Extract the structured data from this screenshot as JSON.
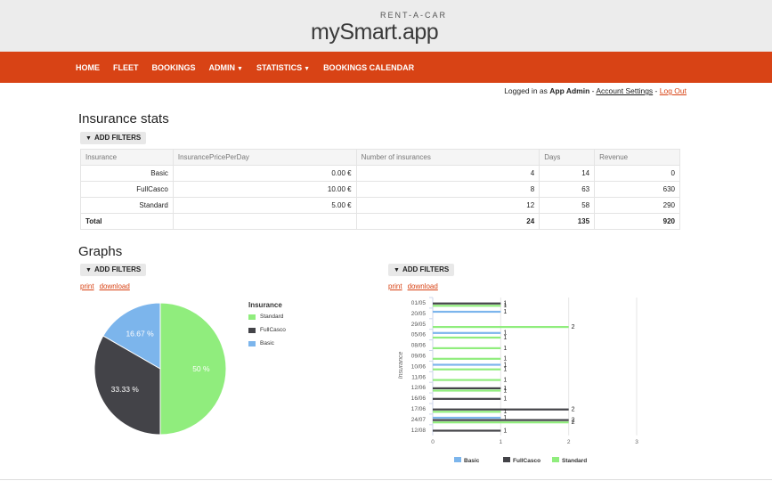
{
  "header": {
    "logo_small": "RENT-A-CAR",
    "logo_main": "mySmart.app"
  },
  "nav": {
    "items": [
      {
        "label": "HOME",
        "caret": false
      },
      {
        "label": "FLEET",
        "caret": false
      },
      {
        "label": "BOOKINGS",
        "caret": false
      },
      {
        "label": "ADMIN",
        "caret": true
      },
      {
        "label": "STATISTICS",
        "caret": true
      },
      {
        "label": "BOOKINGS CALENDAR",
        "caret": false
      }
    ]
  },
  "login": {
    "prefix": "Logged in as",
    "user": "App Admin",
    "sep": " - ",
    "account": "Account Settings",
    "logout": "Log Out"
  },
  "stats": {
    "title": "Insurance stats",
    "filter_label": "ADD FILTERS",
    "columns": [
      "Insurance",
      "InsurancePricePerDay",
      "Number of insurances",
      "Days",
      "Revenue"
    ],
    "rows": [
      [
        "Basic",
        "0.00 €",
        "4",
        "14",
        "0"
      ],
      [
        "FullCasco",
        "10.00 €",
        "8",
        "63",
        "630"
      ],
      [
        "Standard",
        "5.00 €",
        "12",
        "58",
        "290"
      ]
    ],
    "total": [
      "Total",
      "",
      "24",
      "135",
      "920"
    ]
  },
  "graphs": {
    "title": "Graphs",
    "filter_label": "ADD FILTERS",
    "print": "print",
    "download": "download"
  },
  "colors": {
    "Basic": "#7cb5ec",
    "FullCasco": "#434348",
    "Standard": "#90ed7d",
    "accent": "#d84315"
  },
  "chart_data": [
    {
      "type": "pie",
      "legend_title": "Insurance",
      "legend_placement": "right",
      "slices": [
        {
          "name": "Standard",
          "value": 50,
          "label": "50 %"
        },
        {
          "name": "FullCasco",
          "value": 33.33,
          "label": "33.33 %"
        },
        {
          "name": "Basic",
          "value": 16.67,
          "label": "16.67 %"
        }
      ]
    },
    {
      "type": "bar",
      "orientation": "horizontal",
      "ylabel": "Insurance",
      "xlim": [
        0,
        3
      ],
      "xticks": [
        "0",
        "1",
        "2",
        "3"
      ],
      "legend_placement": "bottom",
      "categories": [
        "01/05",
        "20/05",
        "29/05",
        "05/06",
        "08/06",
        "09/06",
        "10/06",
        "11/06",
        "12/06",
        "16/06",
        "17/06",
        "24/07",
        "12/08"
      ],
      "series": [
        {
          "name": "Basic",
          "values": [
            0,
            1,
            0,
            1,
            0,
            0,
            1,
            0,
            0,
            0,
            0,
            1,
            0
          ]
        },
        {
          "name": "FullCasco",
          "values": [
            1,
            0,
            0,
            0,
            0,
            0,
            0,
            0,
            1,
            1,
            2,
            2,
            1
          ]
        },
        {
          "name": "Standard",
          "values": [
            1,
            0,
            2,
            1,
            1,
            1,
            1,
            1,
            1,
            0,
            1,
            2,
            0
          ]
        }
      ]
    }
  ]
}
